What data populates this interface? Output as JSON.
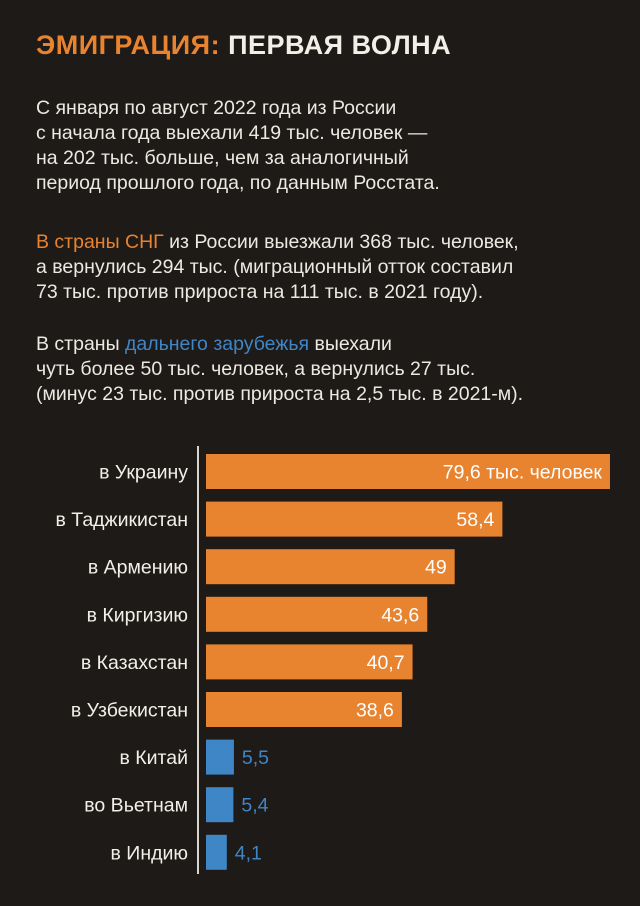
{
  "title": {
    "accent": "ЭМИГРАЦИЯ:",
    "rest": " ПЕРВАЯ ВОЛНА"
  },
  "paragraphs": {
    "p1": {
      "lines": [
        "С января по август 2022 года из России",
        "с начала года выехали 419 тыс. человек —",
        "на 202 тыс. больше, чем за аналогичный",
        "период прошлого года, по данным Росстата."
      ]
    },
    "p2": {
      "highlight": "В страны СНГ",
      "line1_rest": " из России выезжали 368 тыс. человек,",
      "line2": "а вернулись 294 тыс. (миграционный отток составил",
      "line3": "73 тыс. против прироста на 111 тыс. в 2021 году)."
    },
    "p3": {
      "pre": "В страны ",
      "highlight": "дальнего зарубежья",
      "post": " выехали",
      "line2": "чуть более 50 тыс. человек, а вернулись 27 тыс.",
      "line3": "(минус 23 тыс. против прироста на 2,5 тыс. в 2021-м)."
    }
  },
  "colors": {
    "orange": "#e8832f",
    "blue": "#3f86c7",
    "background": "#1e1a17",
    "text": "#f2efe9"
  },
  "chart_data": {
    "type": "bar",
    "orientation": "horizontal",
    "categories": [
      "в Украину",
      "в Таджикистан",
      "в Армению",
      "в Киргизию",
      "в Казахстан",
      "в Узбекистан",
      "в  Китай",
      "во Вьетнам",
      "в Индию"
    ],
    "values": [
      79.6,
      58.4,
      49,
      43.6,
      40.7,
      38.6,
      5.5,
      5.4,
      4.1
    ],
    "labels": [
      "79,6 тыс. человек",
      "58,4",
      "49",
      "43,6",
      "40,7",
      "38,6",
      "5,5",
      "5,4",
      "4,1"
    ],
    "groups": [
      "СНГ",
      "СНГ",
      "СНГ",
      "СНГ",
      "СНГ",
      "СНГ",
      "дальнее зарубежье",
      "дальнее зарубежье",
      "дальнее зарубежье"
    ],
    "xlim": [
      0,
      80
    ],
    "grid": false,
    "legend": "none"
  }
}
